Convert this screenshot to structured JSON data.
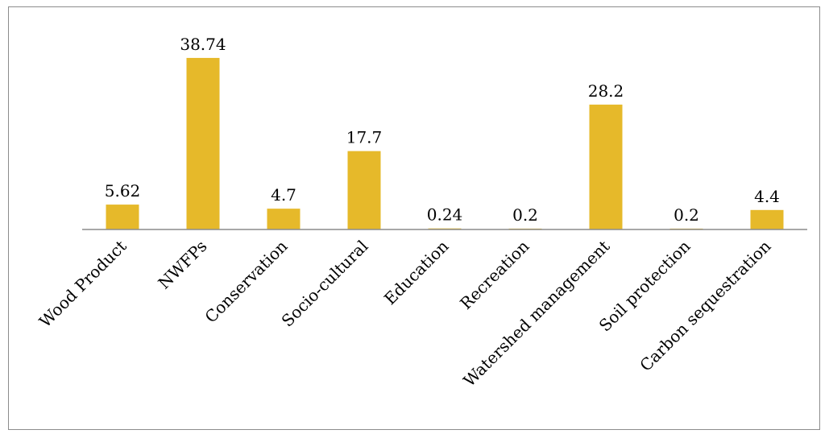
{
  "chart_data": {
    "type": "bar",
    "title": "",
    "xlabel": "",
    "ylabel": "",
    "categories": [
      "Wood Product",
      "NWFPs",
      "Conservation",
      "Socio-cultural",
      "Education",
      "Recreation",
      "Watershed management",
      "Soil protection",
      "Carbon sequestration"
    ],
    "values": [
      5.62,
      38.74,
      4.7,
      17.7,
      0.24,
      0.2,
      28.2,
      0.2,
      4.4
    ],
    "data_labels": [
      "5.62",
      "38.74",
      "4.7",
      "17.7",
      "0.24",
      "0.2",
      "28.2",
      "0.2",
      "4.4"
    ],
    "ylim": [
      0,
      40
    ],
    "grid": false,
    "legend": "none",
    "bar_color": "#E6B92A",
    "axis_color": "#8c8c8c",
    "frame_color": "#8c8c8c"
  }
}
